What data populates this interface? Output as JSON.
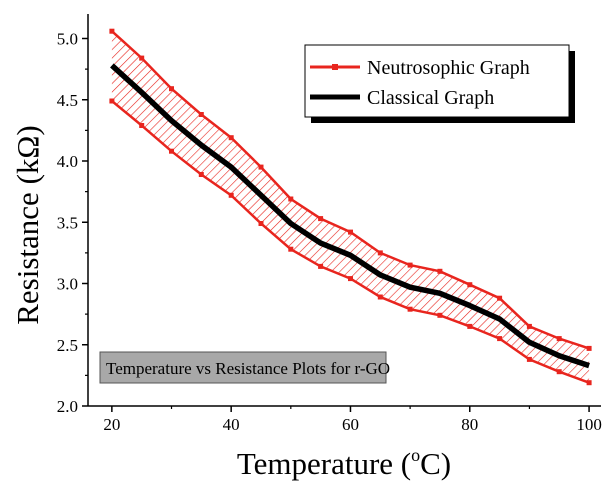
{
  "chart_data": {
    "type": "line",
    "xlabel": "Temperature",
    "xlabel_unit_base": "(",
    "xlabel_unit_sup": "o",
    "xlabel_unit_tail": "C)",
    "ylabel": "Resistance (kΩ)",
    "xlim": [
      16,
      102
    ],
    "ylim": [
      2.0,
      5.2
    ],
    "x_ticks": [
      20,
      40,
      60,
      80,
      100
    ],
    "y_ticks": [
      2.0,
      2.5,
      3.0,
      3.5,
      4.0,
      4.5,
      5.0
    ],
    "x_tick_labels": [
      "20",
      "40",
      "60",
      "80",
      "100"
    ],
    "y_tick_labels": [
      "2.0",
      "2.5",
      "3.0",
      "3.5",
      "4.0",
      "4.5",
      "5.0"
    ],
    "grid": false,
    "legend_position": "top-right",
    "x": [
      20,
      25,
      30,
      35,
      40,
      45,
      50,
      55,
      60,
      65,
      70,
      75,
      80,
      85,
      90,
      95,
      100
    ],
    "series": [
      {
        "name": "Neutrosophic Graph",
        "color": "#e8251e",
        "kind": "band",
        "upper": [
          5.06,
          4.84,
          4.59,
          4.38,
          4.19,
          3.95,
          3.69,
          3.53,
          3.42,
          3.25,
          3.15,
          3.1,
          2.99,
          2.88,
          2.65,
          2.55,
          2.47
        ],
        "lower": [
          4.49,
          4.29,
          4.08,
          3.89,
          3.72,
          3.49,
          3.28,
          3.14,
          3.04,
          2.89,
          2.79,
          2.74,
          2.65,
          2.55,
          2.38,
          2.28,
          2.19
        ]
      },
      {
        "name": "Classical Graph",
        "color": "#000000",
        "kind": "line",
        "values": [
          4.78,
          4.56,
          4.33,
          4.13,
          3.95,
          3.72,
          3.49,
          3.33,
          3.23,
          3.07,
          2.97,
          2.92,
          2.82,
          2.71,
          2.52,
          2.41,
          2.33
        ]
      }
    ],
    "annotation": "Temperature vs Resistance Plots for r-GO"
  }
}
